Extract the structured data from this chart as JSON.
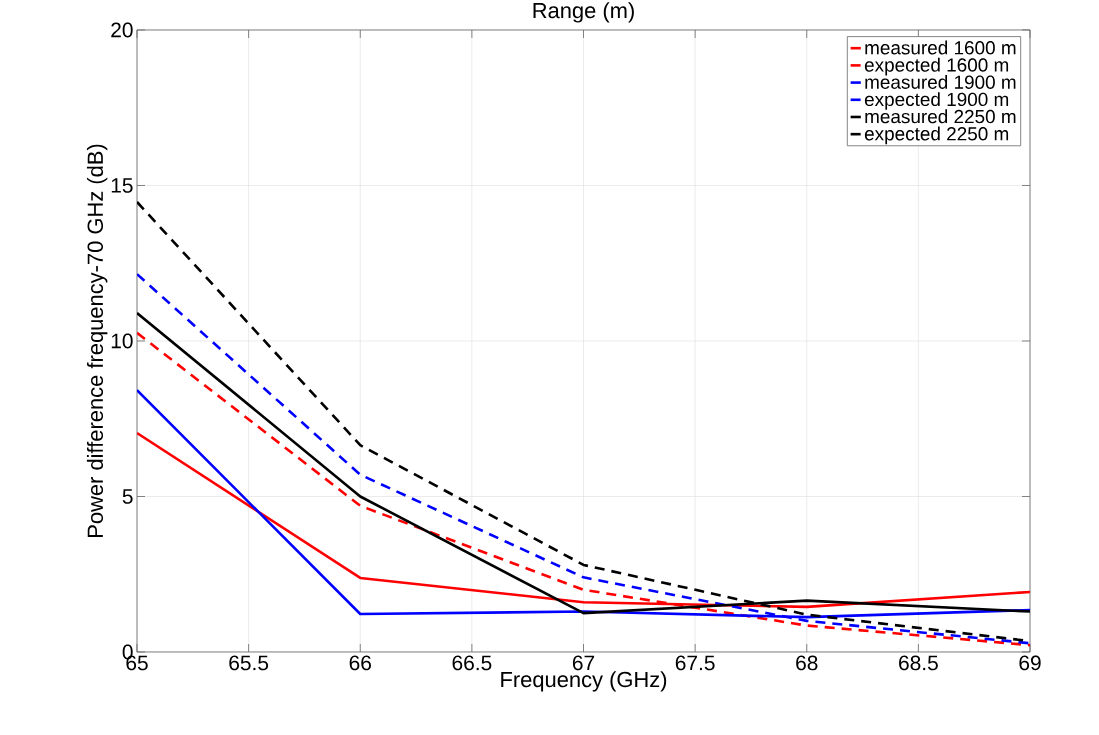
{
  "chart_data": {
    "type": "line",
    "title": "Range (m)",
    "xlabel": "Frequency (GHz)",
    "ylabel": "Power difference frequency-70 GHz (dB)",
    "x": [
      65,
      66,
      67,
      68,
      69
    ],
    "series": [
      {
        "name": "measured 1600 m",
        "color": "#ff0000",
        "line_style": "solid",
        "values": [
          7.04,
          2.38,
          1.6,
          1.45,
          1.93
        ]
      },
      {
        "name": "expected 1600 m",
        "color": "#ff0000",
        "line_style": "dashed",
        "values": [
          10.26,
          4.7,
          2.0,
          0.85,
          0.22
        ]
      },
      {
        "name": "measured 1900 m",
        "color": "#0000ff",
        "line_style": "solid",
        "values": [
          8.42,
          1.22,
          1.3,
          1.12,
          1.35
        ]
      },
      {
        "name": "expected 1900 m",
        "color": "#0000ff",
        "line_style": "dashed",
        "values": [
          12.15,
          5.7,
          2.4,
          1.0,
          0.28
        ]
      },
      {
        "name": "measured 2250 m",
        "color": "#000000",
        "line_style": "solid",
        "values": [
          10.9,
          5.0,
          1.25,
          1.65,
          1.3
        ]
      },
      {
        "name": "expected 2250 m",
        "color": "#000000",
        "line_style": "dashed",
        "values": [
          14.47,
          6.65,
          2.8,
          1.2,
          0.35
        ]
      }
    ],
    "xlim": [
      65,
      69
    ],
    "ylim": [
      0,
      20
    ],
    "xticks": [
      65,
      65.5,
      66,
      66.5,
      67,
      67.5,
      68,
      68.5,
      69
    ],
    "yticks": [
      0,
      5,
      10,
      15,
      20
    ],
    "grid": true,
    "legend": "top right",
    "marker": "none"
  }
}
